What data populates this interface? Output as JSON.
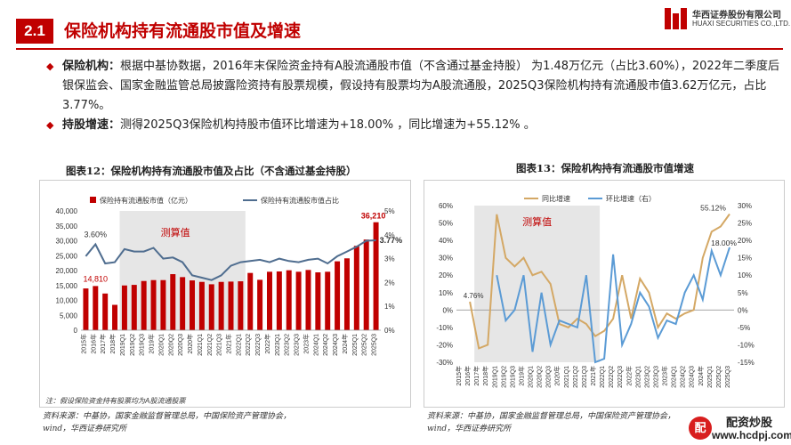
{
  "header": {
    "section_number": "2.1",
    "title": "保险机构持有流通股市值及增速",
    "brand_cn": "华西证券股份有限公司",
    "brand_en": "HUAXI SECURITIES CO.,LTD."
  },
  "bullets": [
    {
      "label": "保险机构：",
      "text": "根据中基协数据，2016年末保险资金持有A股流通股市值（不含通过基金持股） 为1.48万亿元（占比3.60%），2022年二季度后银保监会、国家金融监管总局披露险资持有股票规模，假设持有股票均为A股流通股，2025Q3保险机构持有流通股市值3.62万亿元，占比3.77%。"
    },
    {
      "label": "持股增速：",
      "text": "测得2025Q3保险机构持股市值环比增速为+18.00% ，同比增速为+55.12% 。"
    }
  ],
  "chart_data": [
    {
      "type": "bar",
      "caption": "图表12：保险机构持有流通股市值及占比（不含通过基金持股）",
      "categories": [
        "2015年",
        "2016年",
        "2017年",
        "2018年",
        "2019Q1",
        "2019Q2",
        "2019Q3",
        "2019年",
        "2020Q1",
        "2020Q2",
        "2020Q3",
        "2020年",
        "2021Q1",
        "2021Q2",
        "2021Q3",
        "2021年",
        "2022Q1",
        "2022Q2",
        "2022Q3",
        "2022年",
        "2023Q1",
        "2023Q2",
        "2023Q3",
        "2023年",
        "2024Q1",
        "2024Q2",
        "2024Q3",
        "2024年",
        "2025Q1",
        "2025Q2",
        "2025Q3"
      ],
      "series": [
        {
          "name": "保险持有流通股市值（亿元）",
          "axis": "left",
          "values": [
            14000,
            14810,
            12300,
            8500,
            15000,
            15200,
            16500,
            16800,
            16800,
            18800,
            17800,
            16700,
            16200,
            15400,
            16200,
            16300,
            16400,
            19200,
            16900,
            19600,
            19700,
            20100,
            19600,
            20200,
            19400,
            19600,
            23100,
            24100,
            28300,
            30400,
            36210
          ]
        },
        {
          "name": "保险持有流通股市值占比",
          "axis": "right",
          "values": [
            3.1,
            3.6,
            2.8,
            2.85,
            3.4,
            3.3,
            3.3,
            3.45,
            3.0,
            3.05,
            2.85,
            2.3,
            2.2,
            2.1,
            2.3,
            2.7,
            2.85,
            2.9,
            2.95,
            2.85,
            3.0,
            2.9,
            2.85,
            2.95,
            3.0,
            2.8,
            3.1,
            3.3,
            3.5,
            3.75,
            3.77
          ]
        }
      ],
      "data_labels": {
        "first_value": "14,810",
        "first_share": "3.60%",
        "last_value": "36,210",
        "last_share": "3.77%"
      },
      "ylim": [
        0,
        40000
      ],
      "y2lim": [
        0,
        5
      ],
      "yticks": [
        "40,000",
        "35,000",
        "30,000",
        "25,000",
        "20,000",
        "15,000",
        "10,000",
        "5,000",
        "0"
      ],
      "y2ticks": [
        "5%",
        "4%",
        "3%",
        "2%",
        "1%",
        "0%"
      ],
      "shaded_label": "测算值",
      "shaded_range": [
        "2019Q1",
        "2022Q1"
      ],
      "colors": {
        "bar": "#c00000",
        "line": "#4f6d8f",
        "label": "#c00000",
        "shade": "#e6e6e6"
      },
      "note": "注：假设保险资金持有股票均为A股流通股票",
      "source": [
        "资料来源：中基协，国家金融监督管理总局，中国保险资产管理协会，",
        "wind，华西证券研究所"
      ]
    },
    {
      "type": "line",
      "caption": "图表13：保险机构持有流通股市值增速",
      "categories": [
        "2015年",
        "2016年",
        "2017年",
        "2018年",
        "2019Q1",
        "2019Q2",
        "2019Q3",
        "2019年",
        "2020Q1",
        "2020Q2",
        "2020Q3",
        "2020年",
        "2021Q1",
        "2021Q2",
        "2021Q3",
        "2021年",
        "2022Q1",
        "2022Q2",
        "2022Q3",
        "2022年",
        "2023Q1",
        "2023Q2",
        "2023Q3",
        "2023年",
        "2024Q1",
        "2024Q2",
        "2024Q3",
        "2024年",
        "2025Q1",
        "2025Q2",
        "2025Q3"
      ],
      "series": [
        {
          "name": "同比增速",
          "axis": "left",
          "values": [
            null,
            4.76,
            -22,
            -20,
            55,
            30,
            25,
            30,
            20,
            22,
            15,
            -8,
            -10,
            -5,
            -8,
            -15,
            -12,
            -5,
            20,
            -5,
            18,
            10,
            -10,
            -2,
            -5,
            -2,
            0,
            30,
            45,
            48,
            55.12
          ]
        },
        {
          "name": "环比增速（右）",
          "axis": "right",
          "values": [
            null,
            null,
            null,
            null,
            10,
            -3,
            0,
            10,
            -12,
            5,
            -10,
            -3,
            -4,
            -5,
            10,
            -15,
            -14,
            16,
            -10,
            -4,
            5,
            1,
            -8,
            -3,
            -4,
            5,
            10,
            3,
            17,
            10,
            18.0
          ]
        }
      ],
      "data_labels": {
        "first": "4.76%",
        "yoy_last": "55.12%",
        "qoq_last": "18.00%"
      },
      "ylim": [
        -30,
        60
      ],
      "y2lim": [
        -15,
        30
      ],
      "yticks": [
        "60%",
        "50%",
        "40%",
        "30%",
        "20%",
        "10%",
        "0%",
        "-10%",
        "-20%",
        "-30%"
      ],
      "y2ticks": [
        "30%",
        "25%",
        "20%",
        "15%",
        "10%",
        "5%",
        "0%",
        "-5%",
        "-10%",
        "-15%"
      ],
      "shaded_label": "测算值",
      "shaded_range": [
        "2017年",
        "2021年"
      ],
      "colors": {
        "yoy": "#d4a865",
        "qoq": "#5b9bd5",
        "label": "#c00000",
        "shade": "#e6e6e6"
      },
      "source": [
        "资料来源：中基协，国家金融监督管理总局，中国保险资产管理协会，",
        "wind，华西证券研究所"
      ]
    }
  ],
  "watermark": {
    "logo_text": "配",
    "name": "配资炒股",
    "url": "www.hcdpj.com"
  }
}
